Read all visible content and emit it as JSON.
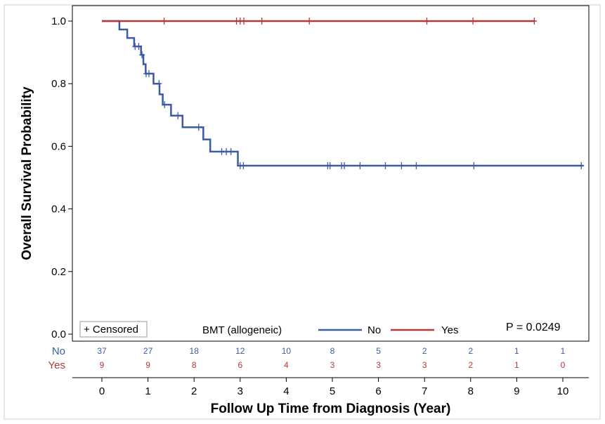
{
  "chart_data": {
    "type": "line",
    "xlabel": "Follow Up Time from Diagnosis (Year)",
    "ylabel": "Overall Survival Probability",
    "xlim": [
      0,
      10.5
    ],
    "ylim": [
      0,
      1
    ],
    "xticks": [
      "0",
      "1",
      "2",
      "3",
      "4",
      "5",
      "6",
      "7",
      "8",
      "9",
      "10"
    ],
    "yticks": [
      "0.0",
      "0.2",
      "0.4",
      "0.6",
      "0.8",
      "1.0"
    ],
    "grid": false,
    "legend": {
      "placement": "bottom",
      "censored_label": "+ Censored",
      "title": "BMT (allogeneic)"
    },
    "annotation": "P = 0.0249",
    "series": [
      {
        "name": "No",
        "color": "#3b5ba5",
        "steps": [
          [
            0,
            1.0
          ],
          [
            0.38,
            0.973
          ],
          [
            0.55,
            0.946
          ],
          [
            0.7,
            0.919
          ],
          [
            0.85,
            0.892
          ],
          [
            0.9,
            0.862
          ],
          [
            0.95,
            0.832
          ],
          [
            1.12,
            0.8
          ],
          [
            1.25,
            0.766
          ],
          [
            1.32,
            0.733
          ],
          [
            1.5,
            0.698
          ],
          [
            1.75,
            0.661
          ],
          [
            2.2,
            0.622
          ],
          [
            2.35,
            0.583
          ],
          [
            2.95,
            0.538
          ],
          [
            10.45,
            0.538
          ]
        ],
        "censored": [
          0.72,
          0.8,
          0.87,
          0.96,
          1.02,
          1.24,
          1.36,
          1.65,
          2.1,
          2.6,
          2.7,
          2.8,
          3.0,
          3.07,
          4.9,
          4.95,
          5.2,
          5.26,
          5.6,
          6.15,
          6.5,
          6.82,
          8.07,
          10.4
        ]
      },
      {
        "name": "Yes",
        "color": "#b33a3a",
        "steps": [
          [
            0,
            1.0
          ],
          [
            9.4,
            1.0
          ]
        ],
        "censored": [
          1.35,
          2.92,
          3.0,
          3.08,
          3.47,
          4.5,
          7.05,
          8.05,
          9.38
        ]
      }
    ],
    "risk_table": {
      "times": [
        0,
        1,
        2,
        3,
        4,
        5,
        6,
        7,
        8,
        9,
        10
      ],
      "rows": [
        {
          "name": "No",
          "values": [
            37,
            27,
            18,
            12,
            10,
            8,
            5,
            2,
            2,
            1,
            1
          ]
        },
        {
          "name": "Yes",
          "values": [
            9,
            9,
            8,
            6,
            4,
            3,
            3,
            3,
            2,
            1,
            0
          ]
        }
      ]
    }
  }
}
